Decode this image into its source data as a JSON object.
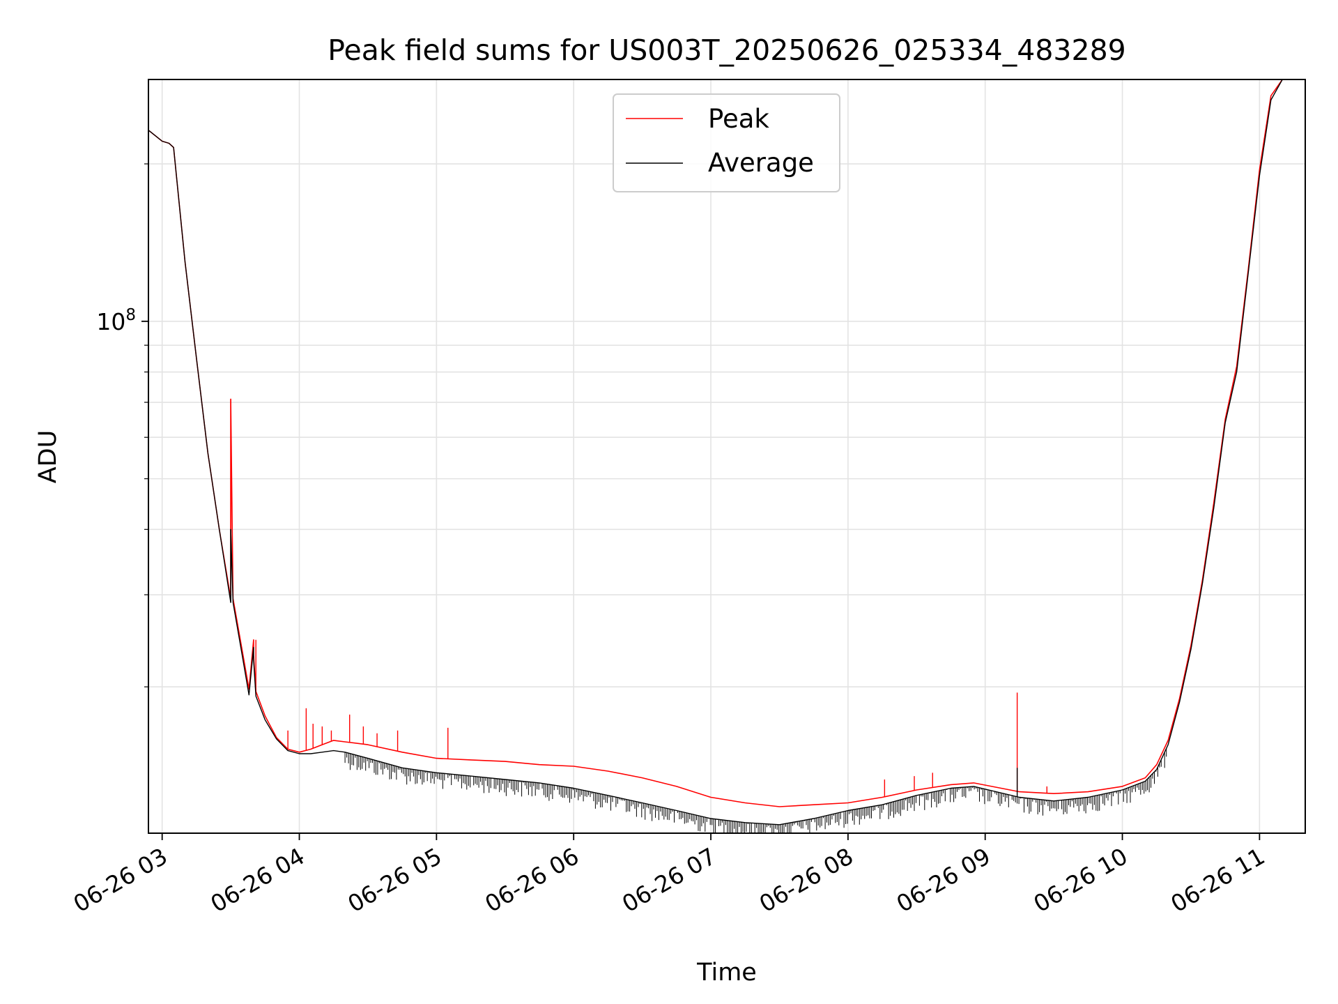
{
  "chart_data": {
    "type": "line",
    "title": "Peak field sums for US003T_20250626_025334_483289",
    "xlabel": "Time",
    "ylabel": "ADU",
    "y_scale": "log",
    "grid": true,
    "legend_position": "top-center",
    "xlim": [
      "2025-06-26 02:54",
      "2025-06-26 11:20"
    ],
    "ylim": [
      10500000,
      290000000
    ],
    "x_ticks": [
      {
        "value": "2025-06-26 03:00",
        "label": "06-26 03"
      },
      {
        "value": "2025-06-26 04:00",
        "label": "06-26 04"
      },
      {
        "value": "2025-06-26 05:00",
        "label": "06-26 05"
      },
      {
        "value": "2025-06-26 06:00",
        "label": "06-26 06"
      },
      {
        "value": "2025-06-26 07:00",
        "label": "06-26 07"
      },
      {
        "value": "2025-06-26 08:00",
        "label": "06-26 08"
      },
      {
        "value": "2025-06-26 09:00",
        "label": "06-26 09"
      },
      {
        "value": "2025-06-26 10:00",
        "label": "06-26 10"
      },
      {
        "value": "2025-06-26 11:00",
        "label": "06-26 11"
      }
    ],
    "y_ticks": [
      {
        "value": 100000000,
        "label_base": "10",
        "label_exp": "8"
      }
    ],
    "series": [
      {
        "name": "Peak",
        "color": "#ff0000",
        "x": [
          "2025-06-26 02:54",
          "2025-06-26 03:00",
          "2025-06-26 03:03",
          "2025-06-26 03:05",
          "2025-06-26 03:10",
          "2025-06-26 03:15",
          "2025-06-26 03:20",
          "2025-06-26 03:25",
          "2025-06-26 03:30",
          "2025-06-26 03:30",
          "2025-06-26 03:31",
          "2025-06-26 03:35",
          "2025-06-26 03:38",
          "2025-06-26 03:40",
          "2025-06-26 03:40",
          "2025-06-26 03:41",
          "2025-06-26 03:45",
          "2025-06-26 03:50",
          "2025-06-26 03:55",
          "2025-06-26 04:00",
          "2025-06-26 04:05",
          "2025-06-26 04:10",
          "2025-06-26 04:15",
          "2025-06-26 04:20",
          "2025-06-26 04:30",
          "2025-06-26 04:45",
          "2025-06-26 05:00",
          "2025-06-26 05:15",
          "2025-06-26 05:30",
          "2025-06-26 05:45",
          "2025-06-26 06:00",
          "2025-06-26 06:15",
          "2025-06-26 06:30",
          "2025-06-26 06:45",
          "2025-06-26 07:00",
          "2025-06-26 07:15",
          "2025-06-26 07:30",
          "2025-06-26 07:45",
          "2025-06-26 08:00",
          "2025-06-26 08:15",
          "2025-06-26 08:30",
          "2025-06-26 08:45",
          "2025-06-26 08:55",
          "2025-06-26 09:15",
          "2025-06-26 09:30",
          "2025-06-26 09:45",
          "2025-06-26 10:00",
          "2025-06-26 10:10",
          "2025-06-26 10:15",
          "2025-06-26 10:20",
          "2025-06-26 10:25",
          "2025-06-26 10:30",
          "2025-06-26 10:35",
          "2025-06-26 10:40",
          "2025-06-26 10:45",
          "2025-06-26 10:50",
          "2025-06-26 10:55",
          "2025-06-26 11:00",
          "2025-06-26 11:05",
          "2025-06-26 11:10",
          "2025-06-26 11:20"
        ],
        "y": [
          232000000,
          221000000,
          219000000,
          215000000,
          130000000,
          85000000,
          56000000,
          40000000,
          29500000,
          71000000,
          29500000,
          23500000,
          19800000,
          24600000,
          23000000,
          19600000,
          17600000,
          16000000,
          15200000,
          15000000,
          15200000,
          15500000,
          15800000,
          15700000,
          15500000,
          15000000,
          14600000,
          14500000,
          14400000,
          14200000,
          14100000,
          13800000,
          13400000,
          12900000,
          12300000,
          12000000,
          11800000,
          11900000,
          12000000,
          12300000,
          12700000,
          13000000,
          13100000,
          12600000,
          12500000,
          12600000,
          12900000,
          13400000,
          14200000,
          15800000,
          19000000,
          24000000,
          32000000,
          45000000,
          65000000,
          82000000,
          125000000,
          195000000,
          270000000,
          290000000,
          290000000
        ],
        "spikes": [
          {
            "x": "2025-06-26 03:30",
            "y": 71000000
          },
          {
            "x": "2025-06-26 03:41",
            "y": 24600000
          },
          {
            "x": "2025-06-26 03:55",
            "y": 16500000
          },
          {
            "x": "2025-06-26 04:03",
            "y": 18200000
          },
          {
            "x": "2025-06-26 04:06",
            "y": 17000000
          },
          {
            "x": "2025-06-26 04:10",
            "y": 16800000
          },
          {
            "x": "2025-06-26 04:14",
            "y": 16500000
          },
          {
            "x": "2025-06-26 04:22",
            "y": 17700000
          },
          {
            "x": "2025-06-26 04:28",
            "y": 16800000
          },
          {
            "x": "2025-06-26 04:34",
            "y": 16300000
          },
          {
            "x": "2025-06-26 04:43",
            "y": 16500000
          },
          {
            "x": "2025-06-26 05:05",
            "y": 16700000
          },
          {
            "x": "2025-06-26 08:16",
            "y": 13300000
          },
          {
            "x": "2025-06-26 08:29",
            "y": 13500000
          },
          {
            "x": "2025-06-26 08:37",
            "y": 13700000
          },
          {
            "x": "2025-06-26 09:14",
            "y": 19500000
          },
          {
            "x": "2025-06-26 09:27",
            "y": 12900000
          }
        ]
      },
      {
        "name": "Average",
        "color": "#000000",
        "x": [
          "2025-06-26 02:54",
          "2025-06-26 03:00",
          "2025-06-26 03:03",
          "2025-06-26 03:05",
          "2025-06-26 03:10",
          "2025-06-26 03:15",
          "2025-06-26 03:20",
          "2025-06-26 03:25",
          "2025-06-26 03:30",
          "2025-06-26 03:30",
          "2025-06-26 03:31",
          "2025-06-26 03:35",
          "2025-06-26 03:38",
          "2025-06-26 03:40",
          "2025-06-26 03:40",
          "2025-06-26 03:41",
          "2025-06-26 03:45",
          "2025-06-26 03:50",
          "2025-06-26 03:55",
          "2025-06-26 04:00",
          "2025-06-26 04:05",
          "2025-06-26 04:10",
          "2025-06-26 04:15",
          "2025-06-26 04:20",
          "2025-06-26 04:30",
          "2025-06-26 04:45",
          "2025-06-26 05:00",
          "2025-06-26 05:15",
          "2025-06-26 05:30",
          "2025-06-26 05:45",
          "2025-06-26 06:00",
          "2025-06-26 06:15",
          "2025-06-26 06:30",
          "2025-06-26 06:45",
          "2025-06-26 07:00",
          "2025-06-26 07:15",
          "2025-06-26 07:30",
          "2025-06-26 07:45",
          "2025-06-26 08:00",
          "2025-06-26 08:15",
          "2025-06-26 08:30",
          "2025-06-26 08:45",
          "2025-06-26 08:55",
          "2025-06-26 09:15",
          "2025-06-26 09:30",
          "2025-06-26 09:45",
          "2025-06-26 10:00",
          "2025-06-26 10:10",
          "2025-06-26 10:15",
          "2025-06-26 10:20",
          "2025-06-26 10:25",
          "2025-06-26 10:30",
          "2025-06-26 10:35",
          "2025-06-26 10:40",
          "2025-06-26 10:45",
          "2025-06-26 10:50",
          "2025-06-26 10:55",
          "2025-06-26 11:00",
          "2025-06-26 11:05",
          "2025-06-26 11:10",
          "2025-06-26 11:20"
        ],
        "y": [
          232000000,
          221000000,
          219000000,
          215000000,
          130000000,
          85000000,
          56000000,
          40000000,
          29000000,
          40000000,
          29000000,
          23000000,
          19300000,
          23800000,
          22500000,
          19200000,
          17300000,
          15900000,
          15100000,
          14900000,
          14900000,
          15000000,
          15100000,
          15000000,
          14600000,
          14000000,
          13700000,
          13500000,
          13300000,
          13100000,
          12800000,
          12400000,
          12000000,
          11600000,
          11200000,
          11000000,
          10900000,
          11200000,
          11600000,
          11900000,
          12400000,
          12800000,
          12900000,
          12300000,
          12100000,
          12300000,
          12700000,
          13200000,
          13900000,
          15500000,
          18700000,
          23600000,
          31500000,
          44000000,
          64000000,
          80000000,
          123000000,
          190000000,
          265000000,
          290000000,
          290000000
        ],
        "spikes": [
          {
            "x": "2025-06-26 03:30",
            "y": 40000000
          },
          {
            "x": "2025-06-26 09:14",
            "y": 14000000
          }
        ]
      }
    ]
  }
}
